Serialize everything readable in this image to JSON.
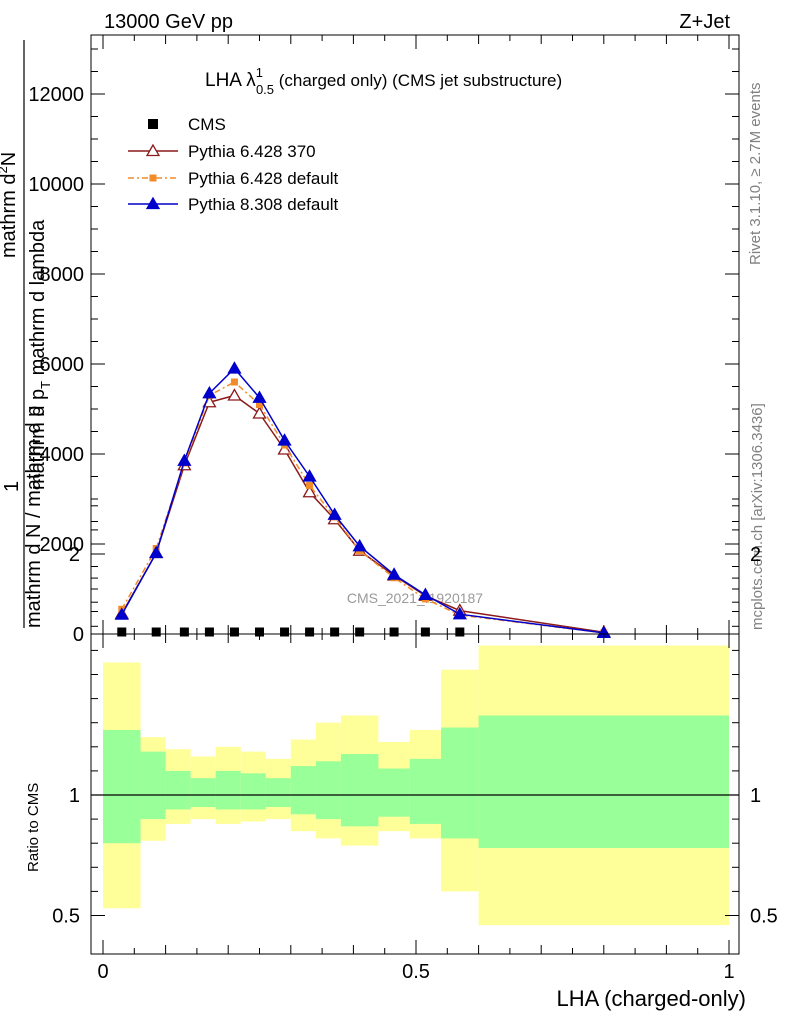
{
  "header": {
    "left": "13000 GeV pp",
    "right": "Z+Jet"
  },
  "title": {
    "main": "LHA λ",
    "sup": "1",
    "sub": "0.5",
    "rest": " (charged only) (CMS jet substructure)"
  },
  "side_labels": {
    "rivet": "Rivet 3.1.10, ≥ 2.7M events",
    "mcplots": "mcplots.cern.ch [arXiv:1306.3436]"
  },
  "watermark": "CMS_2021_I1920187",
  "ylabel_main": {
    "one": "1",
    "denominator": "mathrm d N / mathrm d p",
    "fraction_top": "mathrm d",
    "fraction_sup": "2",
    "fraction_top_rest": "N",
    "fraction_bottom": "mathrm d p",
    "fraction_bottom_sub": "T",
    "fraction_bottom_rest": " mathrm d lambda"
  },
  "ylabel_ratio": "Ratio to CMS",
  "xlabel": "LHA (charged-only)",
  "main_yticks": [
    "0",
    "2000",
    "4000",
    "6000",
    "8000",
    "10000",
    "12000"
  ],
  "ratio_yticks_left": [
    "0.5",
    "1",
    "2"
  ],
  "ratio_yticks_right": [
    "0.5",
    "1",
    "2"
  ],
  "xticks": [
    "0",
    "0.5",
    "1"
  ],
  "legend": [
    {
      "label": "CMS"
    },
    {
      "label": "Pythia 6.428 370"
    },
    {
      "label": "Pythia 6.428 default"
    },
    {
      "label": "Pythia 8.308 default"
    }
  ],
  "colors": {
    "cms": "#000000",
    "p6_370": "#8b1a1a",
    "p6_default": "#f28c28",
    "p8": "#0000cc",
    "band_inner": "#99ff99",
    "band_outer": "#ffff99"
  },
  "chart_data": {
    "type": "line",
    "xlim": [
      0,
      1
    ],
    "ylim": [
      0,
      13500
    ],
    "ratio_ylim": [
      0.4,
      2.3
    ],
    "bins": [
      0.0,
      0.06,
      0.1,
      0.14,
      0.18,
      0.22,
      0.26,
      0.3,
      0.34,
      0.38,
      0.44,
      0.49,
      0.54,
      0.6,
      1.0
    ],
    "x": [
      0.03,
      0.085,
      0.13,
      0.17,
      0.21,
      0.25,
      0.29,
      0.33,
      0.37,
      0.41,
      0.465,
      0.515,
      0.57,
      0.8
    ],
    "cms_values": [
      0,
      0,
      0,
      0,
      0,
      0,
      0,
      0,
      0,
      0,
      0,
      0,
      0,
      null
    ],
    "series": [
      {
        "name": "Pythia 6.428 370",
        "values": [
          450,
          1800,
          3750,
          5150,
          5300,
          4900,
          4100,
          3150,
          2550,
          1850,
          1300,
          850,
          520,
          40
        ]
      },
      {
        "name": "Pythia 6.428 default",
        "values": [
          550,
          1900,
          3800,
          5300,
          5600,
          5100,
          4200,
          3300,
          2600,
          1850,
          1250,
          780,
          420,
          25
        ]
      },
      {
        "name": "Pythia 8.308 default",
        "values": [
          430,
          1800,
          3850,
          5350,
          5900,
          5250,
          4300,
          3500,
          2650,
          1950,
          1320,
          870,
          440,
          25
        ]
      }
    ],
    "ratio_band_inner": [
      [
        0.8,
        1.27
      ],
      [
        0.9,
        1.18
      ],
      [
        0.94,
        1.1
      ],
      [
        0.95,
        1.07
      ],
      [
        0.94,
        1.1
      ],
      [
        0.94,
        1.09
      ],
      [
        0.95,
        1.07
      ],
      [
        0.92,
        1.12
      ],
      [
        0.9,
        1.14
      ],
      [
        0.87,
        1.17
      ],
      [
        0.91,
        1.11
      ],
      [
        0.88,
        1.15
      ],
      [
        0.82,
        1.28
      ],
      [
        0.78,
        1.33
      ]
    ],
    "ratio_band_outer": [
      [
        0.53,
        1.55
      ],
      [
        0.81,
        1.24
      ],
      [
        0.88,
        1.19
      ],
      [
        0.9,
        1.16
      ],
      [
        0.88,
        1.2
      ],
      [
        0.89,
        1.18
      ],
      [
        0.9,
        1.15
      ],
      [
        0.85,
        1.23
      ],
      [
        0.82,
        1.3
      ],
      [
        0.79,
        1.33
      ],
      [
        0.85,
        1.22
      ],
      [
        0.82,
        1.27
      ],
      [
        0.6,
        1.52
      ],
      [
        0.46,
        1.62
      ]
    ]
  }
}
